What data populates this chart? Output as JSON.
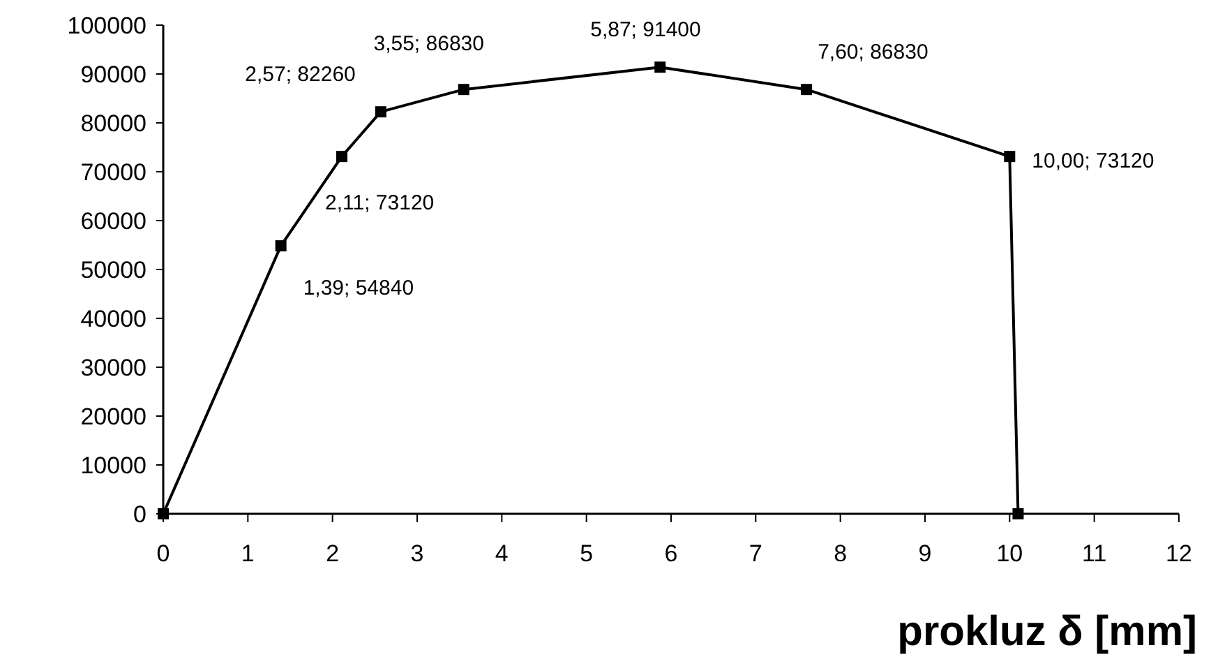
{
  "chart_data": {
    "type": "line",
    "xlabel": "prokluz δ [mm]",
    "x": [
      0,
      1.39,
      2.11,
      2.57,
      3.55,
      5.87,
      7.6,
      10,
      10.1
    ],
    "series": [
      {
        "color": "#000000",
        "values": [
          0,
          54840,
          73120,
          82260,
          86830,
          91400,
          86830,
          73120,
          0
        ],
        "value_labels": [
          null,
          "1,39; 54840",
          "2,11; 73120",
          "2,57; 82260",
          "3,55; 86830",
          "5,87; 91400",
          "7,60; 86830",
          "10,00; 73120",
          null
        ]
      }
    ],
    "xlim": [
      0,
      12
    ],
    "xticks": [
      0,
      1,
      2,
      3,
      4,
      5,
      6,
      7,
      8,
      9,
      10,
      11,
      12
    ],
    "ylim": [
      0,
      100000
    ],
    "yticks": [
      0,
      10000,
      20000,
      30000,
      40000,
      50000,
      60000,
      70000,
      80000,
      90000,
      100000
    ],
    "grid": false,
    "marker": "square",
    "line_style": "solid"
  }
}
